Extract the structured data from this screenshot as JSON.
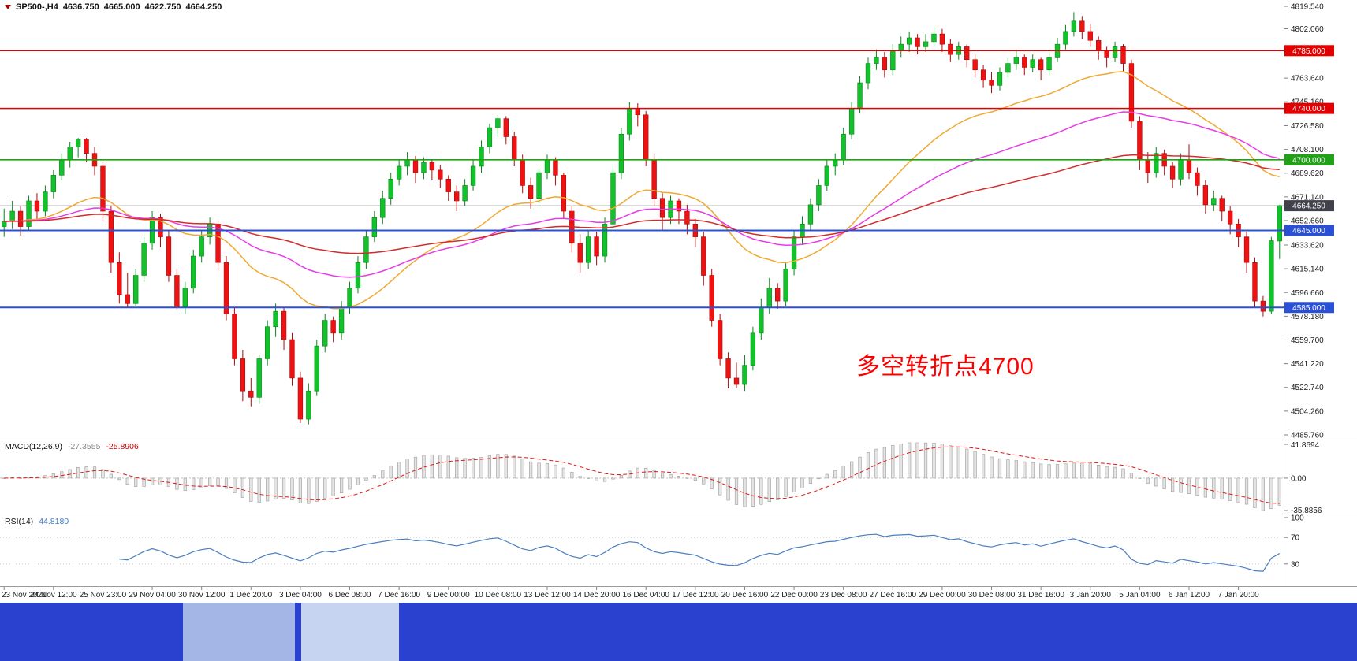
{
  "terminal": {
    "symbol_period": "SP500-,H4",
    "open": "4636.750",
    "high": "4665.000",
    "low": "4622.750",
    "close": "4664.250"
  },
  "annotation": {
    "text": "多空转折点4700",
    "color": "#ff0000"
  },
  "macd_label": {
    "name": "MACD(12,26,9)",
    "main_value": "-27.3555",
    "signal_value": "-25.8906"
  },
  "rsi_label": {
    "name": "RSI(14)",
    "value": "44.8180"
  },
  "taskbar": {
    "color": "#2a41cf",
    "items": [
      {
        "color": "#a3b6e6"
      },
      {
        "color": "#c6d4f2"
      }
    ]
  },
  "chart_data": {
    "type": "candlestick",
    "instrument": "SP500-",
    "timeframe": "H4",
    "price_range": [
      4485.76,
      4819.54
    ],
    "price_axis_ticks": [
      "4819.540",
      "4802.060",
      "4763.640",
      "4745.160",
      "4726.580",
      "4708.100",
      "4689.620",
      "4671.140",
      "4652.660",
      "4633.620",
      "4615.140",
      "4596.660",
      "4578.180",
      "4559.700",
      "4541.220",
      "4522.740",
      "4504.260",
      "4485.760"
    ],
    "levels": [
      {
        "value": 4785.0,
        "label": "4785.000",
        "color": "#e40000",
        "width": 1.4
      },
      {
        "value": 4740.0,
        "label": "4740.000",
        "color": "#e40000",
        "width": 1.4
      },
      {
        "value": 4700.0,
        "label": "4700.000",
        "color": "#21a018",
        "width": 1.6
      },
      {
        "value": 4645.0,
        "label": "4645.000",
        "color": "#2b50d8",
        "width": 2
      },
      {
        "value": 4585.0,
        "label": "4585.000",
        "color": "#2b50d8",
        "width": 2
      }
    ],
    "current_price": {
      "value": 4664.25,
      "label": "4664.250",
      "line_color": "#9a9a9a",
      "badge_color": "#41414b"
    },
    "ma_lines": [
      {
        "name": "orange-ma",
        "period": 30,
        "color": "#efa932"
      },
      {
        "name": "magenta-ma",
        "period": 60,
        "color": "#e63ce6"
      },
      {
        "name": "red-ma",
        "period": 120,
        "color": "#d42a2a"
      }
    ],
    "macd": {
      "params": [
        12,
        26,
        9
      ],
      "main_value": -27.3555,
      "signal_value": -25.8906,
      "axis_ticks": [
        "41.8694",
        "0.00",
        "-35.8856"
      ]
    },
    "rsi": {
      "period": 14,
      "value": 44.818,
      "levels": [
        70,
        30
      ],
      "axis_ticks": [
        "100",
        "70",
        "30"
      ],
      "color": "#4a7fc0"
    },
    "tick_every": 6,
    "time_ticks": [
      "23 Nov 2021",
      "24 Nov 12:00",
      "25 Nov 23:00",
      "29 Nov 04:00",
      "30 Nov 12:00",
      "1 Dec 20:00",
      "3 Dec 04:00",
      "6 Dec 08:00",
      "7 Dec 16:00",
      "9 Dec 00:00",
      "10 Dec 08:00",
      "13 Dec 12:00",
      "14 Dec 20:00",
      "16 Dec 04:00",
      "17 Dec 12:00",
      "20 Dec 16:00",
      "22 Dec 00:00",
      "23 Dec 08:00",
      "27 Dec 16:00",
      "29 Dec 00:00",
      "30 Dec 08:00",
      "31 Dec 16:00",
      "3 Jan 20:00",
      "5 Jan 04:00",
      "6 Jan 12:00",
      "7 Jan 20:00"
    ],
    "ohlc_format": [
      "open",
      "high",
      "low",
      "close"
    ],
    "candles": [
      [
        4648,
        4662,
        4640,
        4652
      ],
      [
        4652,
        4668,
        4646,
        4660
      ],
      [
        4660,
        4664,
        4641,
        4648
      ],
      [
        4648,
        4672,
        4645,
        4668
      ],
      [
        4668,
        4674,
        4652,
        4660
      ],
      [
        4660,
        4680,
        4656,
        4675
      ],
      [
        4675,
        4692,
        4670,
        4688
      ],
      [
        4688,
        4705,
        4684,
        4700
      ],
      [
        4700,
        4714,
        4694,
        4710
      ],
      [
        4710,
        4717,
        4702,
        4716
      ],
      [
        4716,
        4717,
        4698,
        4705
      ],
      [
        4705,
        4710,
        4688,
        4695
      ],
      [
        4695,
        4698,
        4652,
        4660
      ],
      [
        4660,
        4664,
        4612,
        4620
      ],
      [
        4620,
        4628,
        4588,
        4595
      ],
      [
        4595,
        4612,
        4585,
        4588
      ],
      [
        4588,
        4615,
        4586,
        4610
      ],
      [
        4610,
        4640,
        4605,
        4635
      ],
      [
        4635,
        4660,
        4630,
        4655
      ],
      [
        4655,
        4658,
        4632,
        4640
      ],
      [
        4640,
        4645,
        4605,
        4610
      ],
      [
        4610,
        4615,
        4583,
        4585
      ],
      [
        4585,
        4605,
        4580,
        4600
      ],
      [
        4600,
        4630,
        4596,
        4625
      ],
      [
        4625,
        4645,
        4620,
        4640
      ],
      [
        4640,
        4655,
        4634,
        4650
      ],
      [
        4650,
        4652,
        4614,
        4620
      ],
      [
        4620,
        4625,
        4575,
        4580
      ],
      [
        4580,
        4585,
        4540,
        4545
      ],
      [
        4545,
        4552,
        4512,
        4520
      ],
      [
        4520,
        4530,
        4508,
        4515
      ],
      [
        4515,
        4548,
        4510,
        4545
      ],
      [
        4545,
        4575,
        4540,
        4570
      ],
      [
        4570,
        4588,
        4562,
        4582
      ],
      [
        4582,
        4585,
        4552,
        4560
      ],
      [
        4560,
        4565,
        4524,
        4530
      ],
      [
        4530,
        4535,
        4495,
        4498
      ],
      [
        4498,
        4526,
        4494,
        4520
      ],
      [
        4520,
        4560,
        4516,
        4555
      ],
      [
        4555,
        4580,
        4550,
        4575
      ],
      [
        4575,
        4578,
        4558,
        4565
      ],
      [
        4565,
        4590,
        4560,
        4585
      ],
      [
        4585,
        4605,
        4580,
        4600
      ],
      [
        4600,
        4625,
        4596,
        4620
      ],
      [
        4620,
        4645,
        4615,
        4640
      ],
      [
        4640,
        4660,
        4636,
        4655
      ],
      [
        4655,
        4676,
        4650,
        4670
      ],
      [
        4670,
        4690,
        4665,
        4685
      ],
      [
        4685,
        4700,
        4680,
        4695
      ],
      [
        4695,
        4706,
        4688,
        4700
      ],
      [
        4700,
        4703,
        4682,
        4690
      ],
      [
        4690,
        4702,
        4685,
        4698
      ],
      [
        4698,
        4700,
        4684,
        4692
      ],
      [
        4692,
        4696,
        4678,
        4685
      ],
      [
        4685,
        4688,
        4668,
        4675
      ],
      [
        4675,
        4680,
        4660,
        4668
      ],
      [
        4668,
        4685,
        4664,
        4680
      ],
      [
        4680,
        4700,
        4676,
        4695
      ],
      [
        4695,
        4715,
        4690,
        4710
      ],
      [
        4710,
        4728,
        4705,
        4725
      ],
      [
        4725,
        4735,
        4718,
        4732
      ],
      [
        4732,
        4734,
        4712,
        4718
      ],
      [
        4718,
        4722,
        4695,
        4700
      ],
      [
        4700,
        4704,
        4674,
        4680
      ],
      [
        4680,
        4686,
        4662,
        4670
      ],
      [
        4670,
        4694,
        4666,
        4690
      ],
      [
        4690,
        4704,
        4685,
        4700
      ],
      [
        4700,
        4702,
        4680,
        4688
      ],
      [
        4688,
        4690,
        4654,
        4660
      ],
      [
        4660,
        4664,
        4628,
        4635
      ],
      [
        4635,
        4642,
        4612,
        4620
      ],
      [
        4620,
        4645,
        4615,
        4640
      ],
      [
        4640,
        4644,
        4618,
        4625
      ],
      [
        4625,
        4655,
        4620,
        4650
      ],
      [
        4650,
        4695,
        4646,
        4690
      ],
      [
        4690,
        4725,
        4685,
        4720
      ],
      [
        4720,
        4745,
        4715,
        4740
      ],
      [
        4740,
        4744,
        4726,
        4735
      ],
      [
        4735,
        4738,
        4695,
        4700
      ],
      [
        4700,
        4705,
        4664,
        4670
      ],
      [
        4670,
        4674,
        4645,
        4655
      ],
      [
        4655,
        4672,
        4650,
        4668
      ],
      [
        4668,
        4670,
        4650,
        4660
      ],
      [
        4660,
        4665,
        4642,
        4650
      ],
      [
        4650,
        4654,
        4632,
        4640
      ],
      [
        4640,
        4644,
        4602,
        4610
      ],
      [
        4610,
        4615,
        4570,
        4575
      ],
      [
        4575,
        4580,
        4540,
        4545
      ],
      [
        4545,
        4550,
        4522,
        4530
      ],
      [
        4530,
        4542,
        4522,
        4525
      ],
      [
        4525,
        4548,
        4520,
        4540
      ],
      [
        4540,
        4570,
        4536,
        4565
      ],
      [
        4565,
        4592,
        4560,
        4585
      ],
      [
        4585,
        4608,
        4580,
        4600
      ],
      [
        4600,
        4604,
        4584,
        4590
      ],
      [
        4590,
        4620,
        4586,
        4615
      ],
      [
        4615,
        4645,
        4610,
        4640
      ],
      [
        4640,
        4656,
        4634,
        4650
      ],
      [
        4650,
        4670,
        4645,
        4665
      ],
      [
        4665,
        4685,
        4660,
        4680
      ],
      [
        4680,
        4700,
        4676,
        4695
      ],
      [
        4695,
        4705,
        4688,
        4700
      ],
      [
        4700,
        4725,
        4696,
        4720
      ],
      [
        4720,
        4745,
        4716,
        4740
      ],
      [
        4740,
        4765,
        4736,
        4760
      ],
      [
        4760,
        4780,
        4755,
        4775
      ],
      [
        4775,
        4786,
        4770,
        4780
      ],
      [
        4780,
        4784,
        4764,
        4770
      ],
      [
        4770,
        4790,
        4766,
        4785
      ],
      [
        4785,
        4796,
        4780,
        4790
      ],
      [
        4790,
        4800,
        4784,
        4795
      ],
      [
        4795,
        4798,
        4782,
        4788
      ],
      [
        4788,
        4798,
        4784,
        4792
      ],
      [
        4792,
        4804,
        4788,
        4798
      ],
      [
        4798,
        4802,
        4784,
        4790
      ],
      [
        4790,
        4794,
        4776,
        4782
      ],
      [
        4782,
        4792,
        4778,
        4788
      ],
      [
        4788,
        4790,
        4772,
        4778
      ],
      [
        4778,
        4782,
        4764,
        4770
      ],
      [
        4770,
        4774,
        4756,
        4762
      ],
      [
        4762,
        4768,
        4752,
        4758
      ],
      [
        4758,
        4772,
        4754,
        4768
      ],
      [
        4768,
        4780,
        4764,
        4775
      ],
      [
        4775,
        4786,
        4770,
        4780
      ],
      [
        4780,
        4782,
        4766,
        4772
      ],
      [
        4772,
        4782,
        4768,
        4778
      ],
      [
        4778,
        4780,
        4762,
        4770
      ],
      [
        4770,
        4784,
        4766,
        4780
      ],
      [
        4780,
        4795,
        4776,
        4790
      ],
      [
        4790,
        4805,
        4786,
        4800
      ],
      [
        4800,
        4815,
        4796,
        4808
      ],
      [
        4808,
        4812,
        4794,
        4800
      ],
      [
        4800,
        4806,
        4788,
        4793
      ],
      [
        4793,
        4796,
        4778,
        4785
      ],
      [
        4785,
        4788,
        4772,
        4780
      ],
      [
        4780,
        4792,
        4776,
        4788
      ],
      [
        4788,
        4790,
        4768,
        4775
      ],
      [
        4775,
        4778,
        4725,
        4730
      ],
      [
        4730,
        4734,
        4692,
        4700
      ],
      [
        4700,
        4706,
        4682,
        4690
      ],
      [
        4690,
        4710,
        4686,
        4705
      ],
      [
        4705,
        4708,
        4688,
        4695
      ],
      [
        4695,
        4698,
        4678,
        4685
      ],
      [
        4685,
        4705,
        4680,
        4700
      ],
      [
        4700,
        4712,
        4685,
        4690
      ],
      [
        4690,
        4694,
        4672,
        4680
      ],
      [
        4680,
        4684,
        4658,
        4665
      ],
      [
        4665,
        4676,
        4660,
        4670
      ],
      [
        4670,
        4672,
        4652,
        4660
      ],
      [
        4660,
        4664,
        4642,
        4650
      ],
      [
        4650,
        4654,
        4632,
        4640
      ],
      [
        4640,
        4644,
        4612,
        4620
      ],
      [
        4620,
        4624,
        4585,
        4590
      ],
      [
        4590,
        4594,
        4578,
        4582
      ],
      [
        4582,
        4640,
        4580,
        4637
      ],
      [
        4636.75,
        4665,
        4622.75,
        4664.25
      ]
    ]
  }
}
